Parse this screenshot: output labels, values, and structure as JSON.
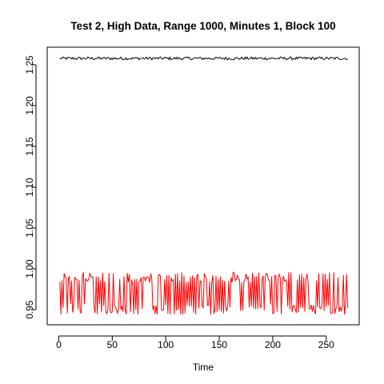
{
  "chart_data": {
    "type": "line",
    "title": "Test 2, High Data, Range 1000, Minutes 1, Block 100",
    "xlabel": "Time",
    "ylabel": "",
    "xlim": [
      -10.8,
      280.8
    ],
    "ylim": [
      0.9315,
      1.2715
    ],
    "x_ticks": [
      0,
      50,
      100,
      150,
      200,
      250
    ],
    "x_tick_labels": [
      "0",
      "50",
      "100",
      "150",
      "200",
      "250"
    ],
    "y_ticks": [
      0.95,
      1.0,
      1.05,
      1.1,
      1.15,
      1.2,
      1.25
    ],
    "y_tick_labels": [
      "0.95",
      "1.00",
      "1.05",
      "1.10",
      "1.15",
      "1.20",
      "1.25"
    ],
    "grid": false,
    "legend": "none",
    "series": [
      {
        "color": "#000000",
        "n": 270,
        "x_start": 1,
        "level": 1.2578,
        "amplitude": 0.0018
      },
      {
        "color": "#ff0000",
        "n": 270,
        "x_start": 1,
        "min": 0.944,
        "max": 0.996
      }
    ]
  }
}
